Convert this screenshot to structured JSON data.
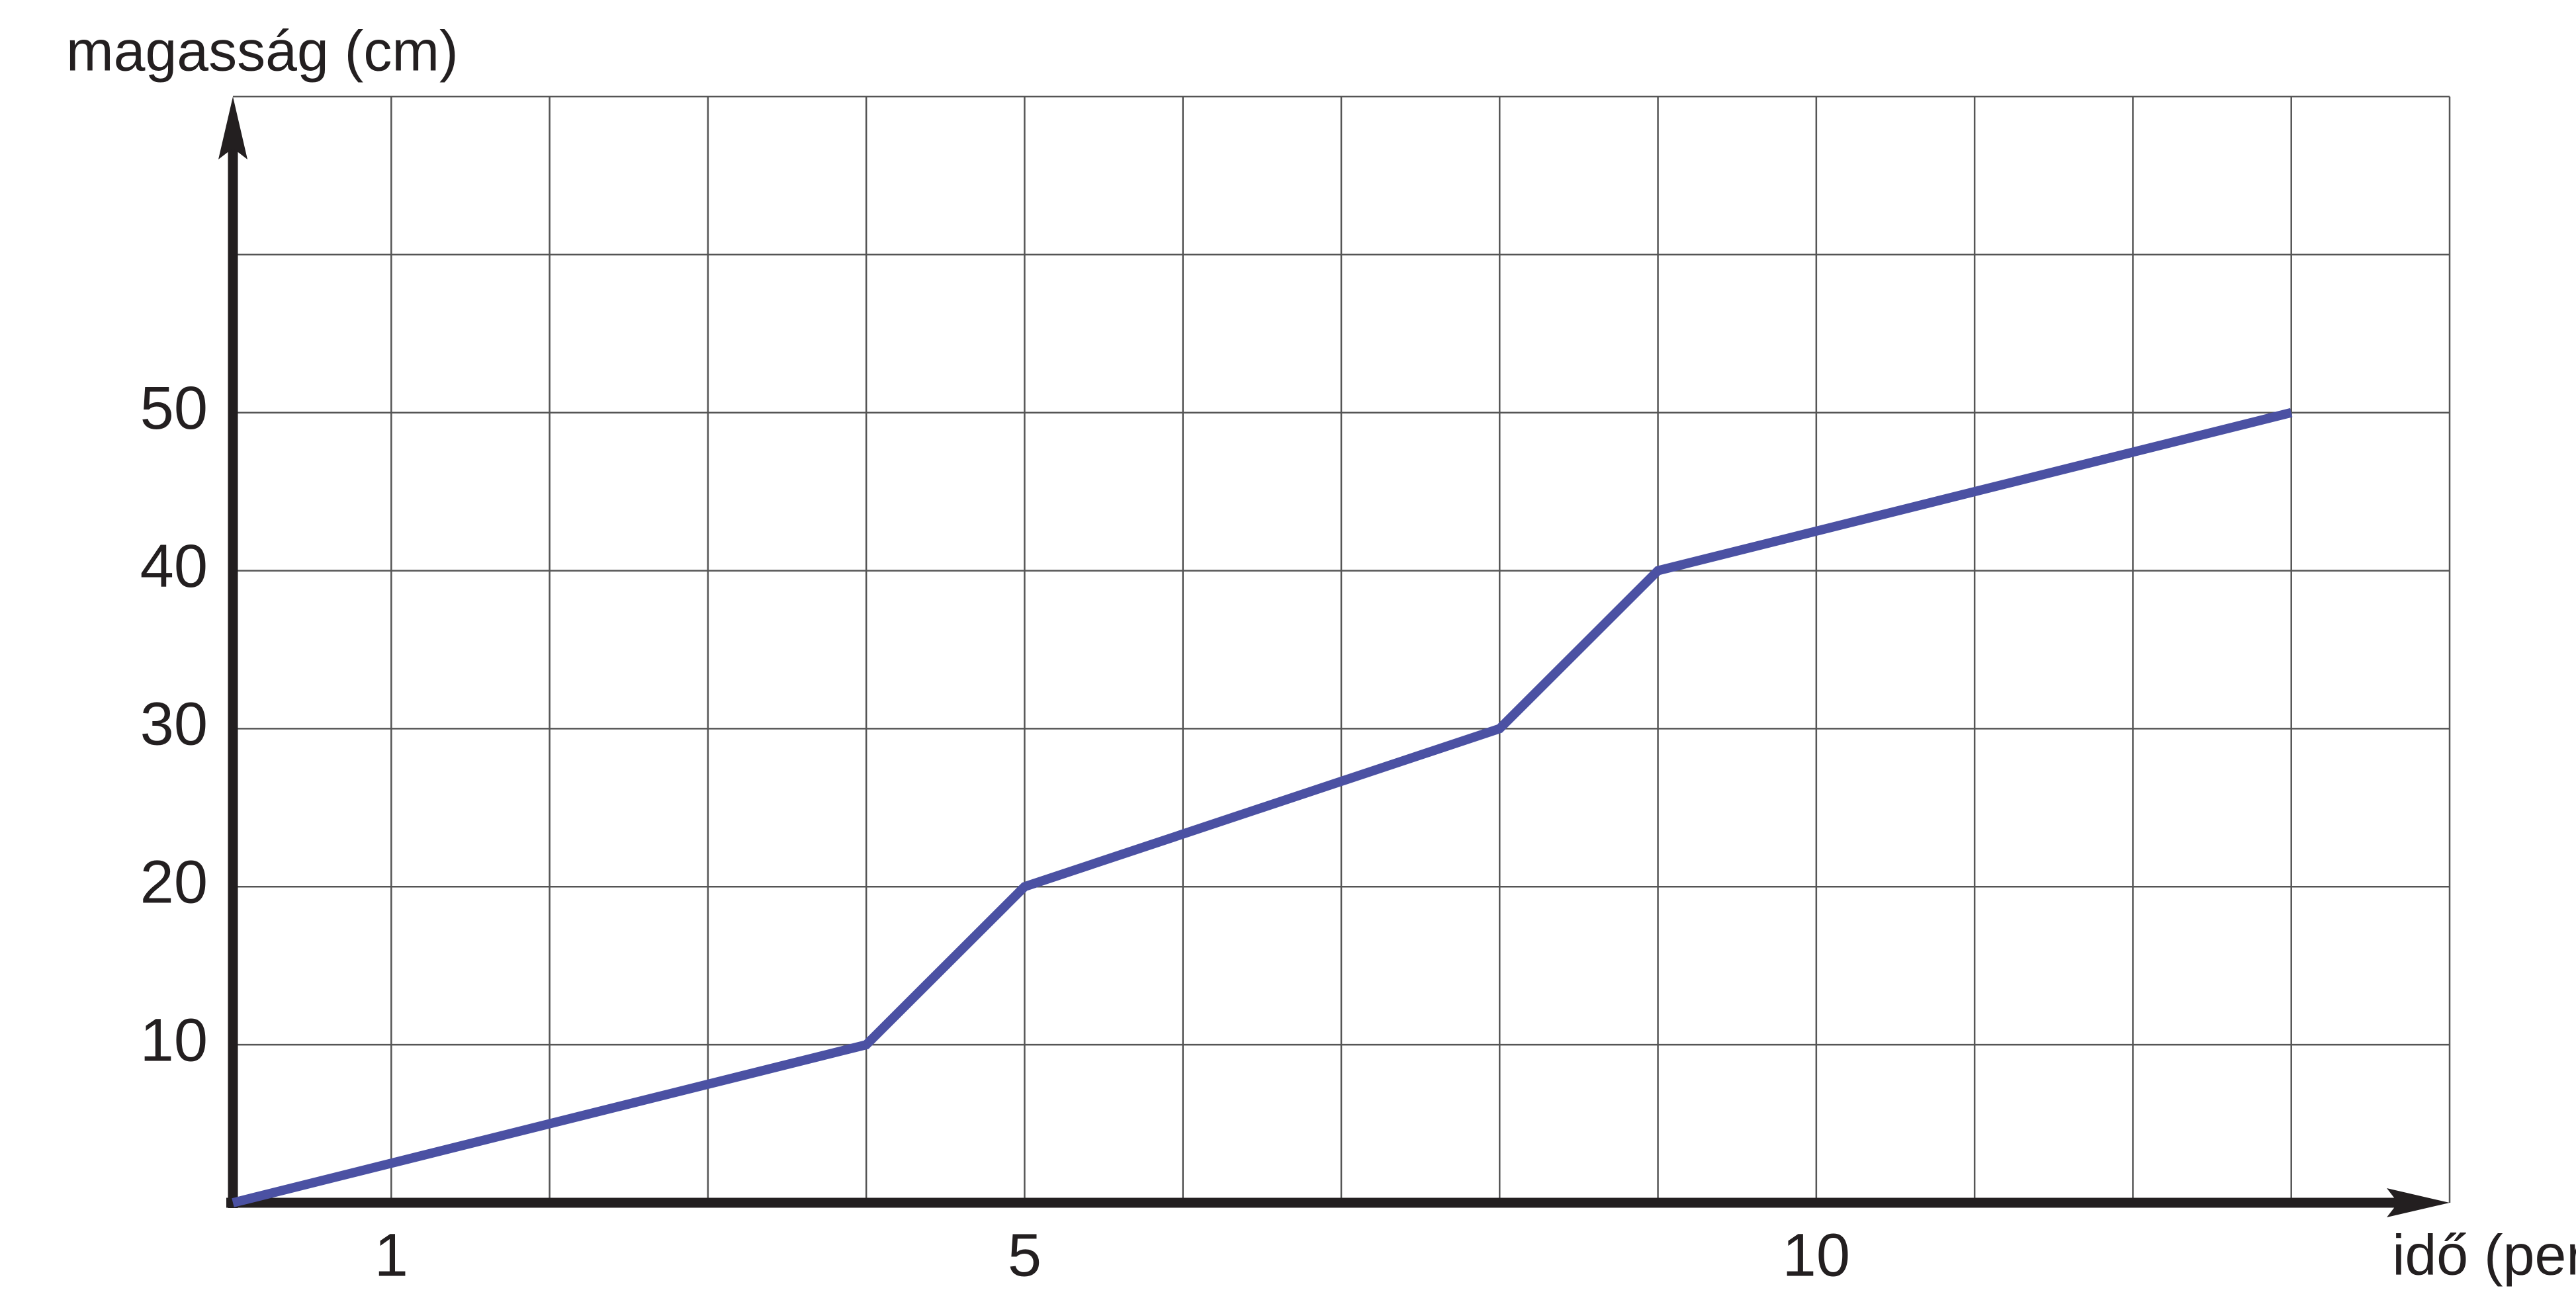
{
  "chart_data": {
    "type": "line",
    "x_label": "idő (perc)",
    "y_label": "magasság (cm)",
    "x": [
      0,
      4,
      5,
      8,
      9,
      13
    ],
    "series": [
      {
        "color": "#4b51a3",
        "values": [
          0,
          10,
          20,
          30,
          40,
          50
        ]
      }
    ],
    "xlim": [
      0,
      14
    ],
    "ylim": [
      0,
      70
    ],
    "xticks": [
      1,
      5,
      10
    ],
    "yticks": [
      10,
      20,
      30,
      40,
      50
    ],
    "xgrid": [
      1,
      2,
      3,
      4,
      5,
      6,
      7,
      8,
      9,
      10,
      11,
      12,
      13,
      14
    ],
    "ygrid": [
      10,
      20,
      30,
      40,
      50,
      60,
      70
    ],
    "grid": true
  }
}
